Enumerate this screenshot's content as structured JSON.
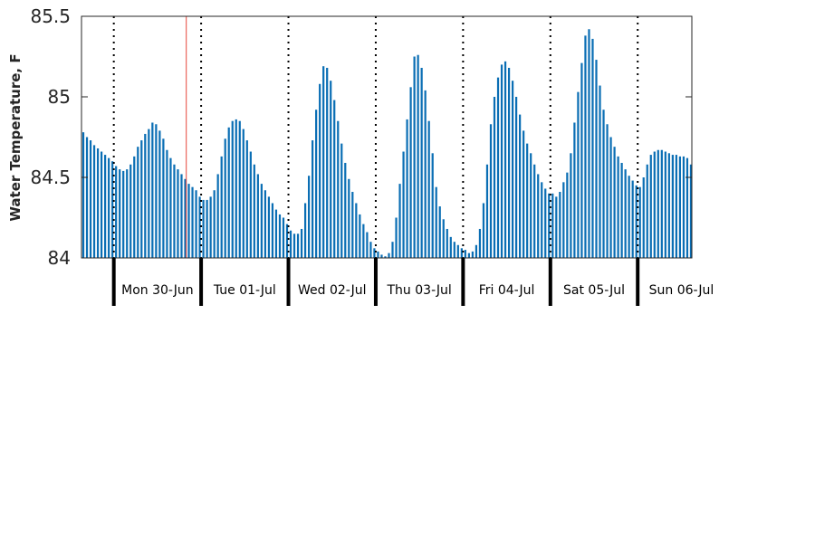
{
  "chart_data": {
    "type": "bar",
    "ylabel": "Water Temperature, F",
    "xlabel": "",
    "ylim": [
      84,
      85.5
    ],
    "yticks": [
      {
        "value": 84,
        "label": "84"
      },
      {
        "value": 84.5,
        "label": "84.5"
      },
      {
        "value": 85,
        "label": "85"
      },
      {
        "value": 85.5,
        "label": "85.5"
      }
    ],
    "x_range_days": [
      -0.37,
      6.62
    ],
    "day_labels": [
      "Mon 30-Jun",
      "Tue 01-Jul",
      "Wed 02-Jul",
      "Thu 03-Jul",
      "Fri 04-Jul",
      "Sat 05-Jul",
      "Sun 06-Jul"
    ],
    "current_time_day": 0.83,
    "interval_hours": 1,
    "values": [
      84.78,
      84.75,
      84.73,
      84.7,
      84.68,
      84.66,
      84.64,
      84.62,
      84.6,
      84.57,
      84.55,
      84.54,
      84.55,
      84.58,
      84.63,
      84.69,
      84.73,
      84.77,
      84.8,
      84.84,
      84.83,
      84.79,
      84.74,
      84.67,
      84.62,
      84.58,
      84.55,
      84.52,
      84.49,
      84.46,
      84.44,
      84.42,
      84.38,
      84.36,
      84.36,
      84.38,
      84.42,
      84.52,
      84.63,
      84.74,
      84.81,
      84.85,
      84.86,
      84.85,
      84.8,
      84.73,
      84.66,
      84.58,
      84.52,
      84.46,
      84.42,
      84.38,
      84.34,
      84.3,
      84.27,
      84.25,
      84.21,
      84.17,
      84.15,
      84.15,
      84.18,
      84.34,
      84.51,
      84.73,
      84.92,
      85.08,
      85.19,
      85.18,
      85.1,
      84.98,
      84.85,
      84.71,
      84.59,
      84.49,
      84.41,
      84.34,
      84.27,
      84.21,
      84.16,
      84.1,
      84.06,
      84.04,
      84.02,
      84.01,
      84.03,
      84.1,
      84.25,
      84.46,
      84.66,
      84.86,
      85.06,
      85.25,
      85.26,
      85.18,
      85.04,
      84.85,
      84.65,
      84.44,
      84.32,
      84.24,
      84.18,
      84.13,
      84.1,
      84.08,
      84.06,
      84.05,
      84.03,
      84.04,
      84.08,
      84.18,
      84.34,
      84.58,
      84.83,
      85.0,
      85.12,
      85.2,
      85.22,
      85.18,
      85.1,
      85.0,
      84.89,
      84.79,
      84.71,
      84.65,
      84.58,
      84.52,
      84.47,
      84.43,
      84.4,
      84.4,
      84.38,
      84.41,
      84.47,
      84.53,
      84.65,
      84.84,
      85.03,
      85.21,
      85.38,
      85.42,
      85.36,
      85.23,
      85.07,
      84.92,
      84.83,
      84.75,
      84.69,
      84.63,
      84.59,
      84.55,
      84.51,
      84.48,
      84.45,
      84.44,
      84.5,
      84.58,
      84.64,
      84.66,
      84.67,
      84.67,
      84.66,
      84.65,
      84.64,
      84.64,
      84.63,
      84.63,
      84.62,
      84.58
    ]
  }
}
